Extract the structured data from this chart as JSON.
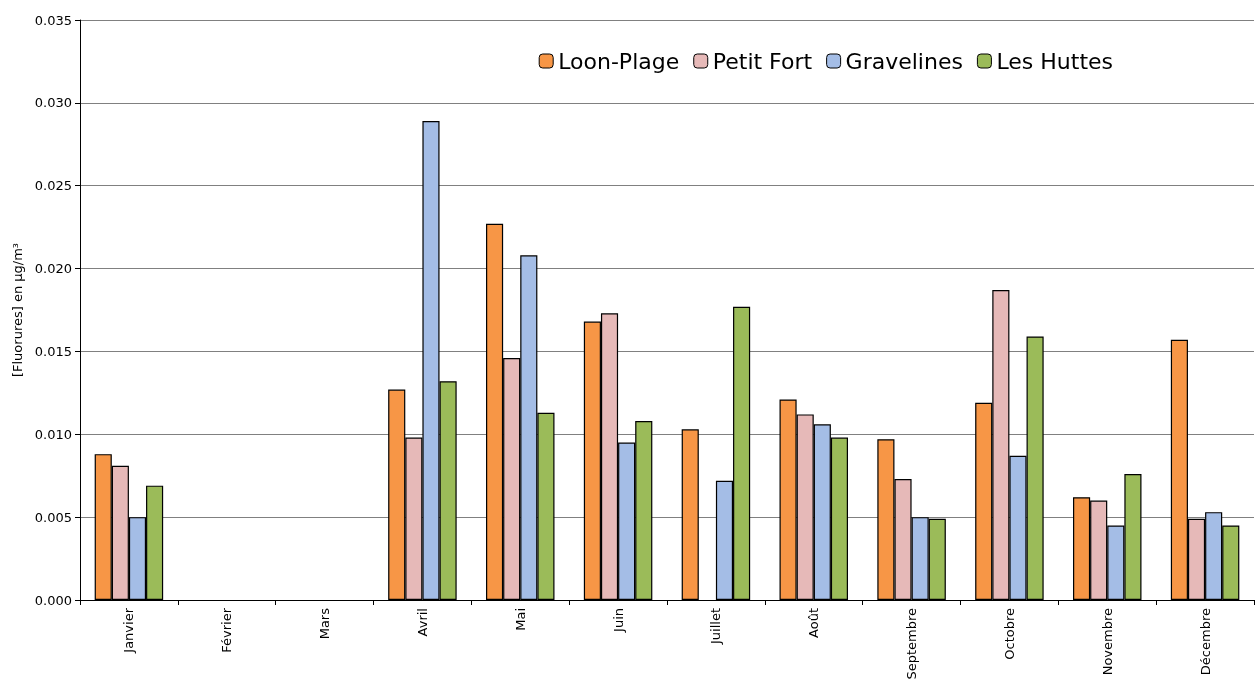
{
  "chart_data": {
    "type": "bar",
    "ylabel": "[Fluorures] en µg/m³",
    "categories": [
      "Janvier",
      "Février",
      "Mars",
      "Avril",
      "Mai",
      "Juin",
      "Juillet",
      "Août",
      "Septembre",
      "Octobre",
      "Novembre",
      "Décembre"
    ],
    "series": [
      {
        "name": "Loon-Plage",
        "color": "#f79646",
        "values": [
          0.0088,
          null,
          null,
          0.0127,
          0.0227,
          0.0168,
          0.0103,
          0.0121,
          0.0097,
          0.0119,
          0.0062,
          0.0157
        ]
      },
      {
        "name": "Petit Fort",
        "color": "#e6b9b8",
        "values": [
          0.0081,
          null,
          null,
          0.0098,
          0.0146,
          0.0173,
          null,
          0.0112,
          0.0073,
          0.0187,
          0.006,
          0.0049
        ]
      },
      {
        "name": "Gravelines",
        "color": "#a4bde6",
        "values": [
          0.005,
          null,
          null,
          0.0289,
          0.0208,
          0.0095,
          0.0072,
          0.0106,
          0.005,
          0.0087,
          0.0045,
          0.0053
        ]
      },
      {
        "name": "Les Huttes",
        "color": "#9bbb59",
        "values": [
          0.0069,
          null,
          null,
          0.0132,
          0.0113,
          0.0108,
          0.0177,
          0.0098,
          0.0049,
          0.0159,
          0.0076,
          0.0045
        ]
      }
    ],
    "ylim": [
      0,
      0.035
    ],
    "yticks": [
      {
        "value": 0,
        "label": "0.000"
      },
      0.005,
      {
        "value": 0.01,
        "label": "0.010"
      },
      0.015,
      {
        "value": 0.02,
        "label": "0.020"
      },
      0.025,
      {
        "value": 0.03,
        "label": "0.030"
      },
      0.035
    ],
    "grid": "y",
    "legend": "top right"
  }
}
